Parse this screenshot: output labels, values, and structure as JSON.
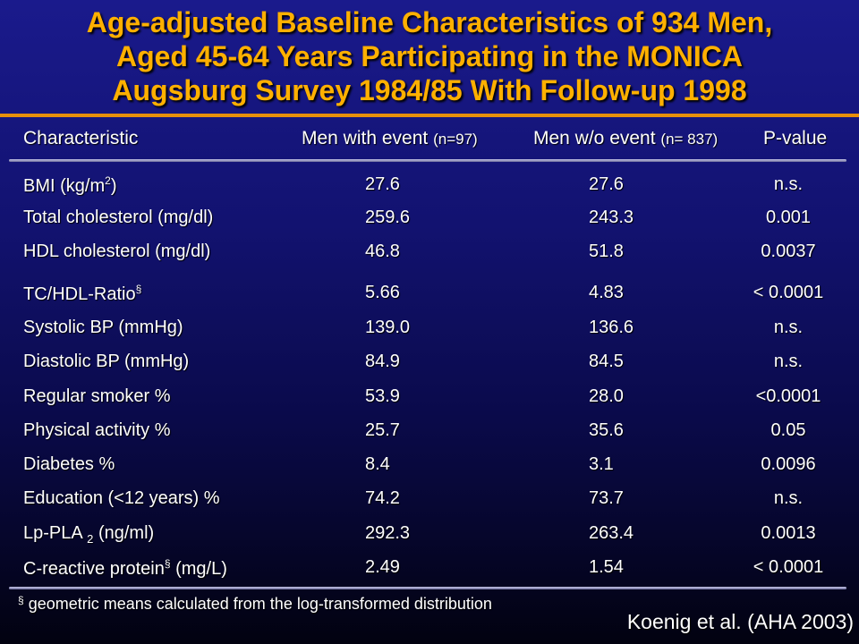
{
  "title": {
    "line1": "Age-adjusted Baseline Characteristics of 934 Men,",
    "line2": "Aged 45-64 Years Participating in the MONICA",
    "line3": "Augsburg Survey 1984/85 With Follow-up 1998"
  },
  "header": {
    "characteristic": "Characteristic",
    "with_event": "Men with event ",
    "with_event_n": "(n=97)",
    "without_event": "Men w/o event ",
    "without_event_n": "(n= 837)",
    "p_value": "P-value"
  },
  "rows": [
    {
      "pre": "BMI (kg/m",
      "sup": "2",
      "post": ")",
      "with_event": "27.6",
      "without_event": "27.6",
      "p": "n.s."
    },
    {
      "pre": "Total cholesterol (mg/dl)",
      "with_event": "259.6",
      "without_event": "243.3",
      "p": "0.001"
    },
    {
      "pre": "HDL cholesterol (mg/dl)",
      "with_event": "46.8",
      "without_event": "51.8",
      "p": "0.0037"
    },
    {
      "pre": "TC/HDL-Ratio",
      "sup": "§",
      "with_event": "5.66",
      "without_event": "4.83",
      "p": "< 0.0001"
    },
    {
      "pre": "Systolic BP (mmHg)",
      "with_event": "139.0",
      "without_event": "136.6",
      "p": "n.s."
    },
    {
      "pre": "Diastolic BP (mmHg)",
      "with_event": "84.9",
      "without_event": "84.5",
      "p": "n.s."
    },
    {
      "pre": "Regular smoker %",
      "with_event": "53.9",
      "without_event": "28.0",
      "p": "<0.0001"
    },
    {
      "pre": "Physical activity %",
      "with_event": "25.7",
      "without_event": "35.6",
      "p": "0.05"
    },
    {
      "pre": "Diabetes %",
      "with_event": "8.4",
      "without_event": "3.1",
      "p": "0.0096"
    },
    {
      "pre": "Education (<12 years) %",
      "with_event": "74.2",
      "without_event": "73.7",
      "p": "n.s."
    },
    {
      "pre": "Lp-PLA ",
      "sub": "2",
      "post": " (ng/ml)",
      "with_event": "292.3",
      "without_event": "263.4",
      "p": "0.0013"
    },
    {
      "pre": "C-reactive protein",
      "sup": "§",
      "post": " (mg/L)",
      "with_event": "2.49",
      "without_event": "1.54",
      "p": "< 0.0001"
    }
  ],
  "footnote": {
    "mark": "§",
    "text": " geometric means calculated from the log-transformed distribution"
  },
  "citation": "Koenig et al. (AHA 2003)"
}
